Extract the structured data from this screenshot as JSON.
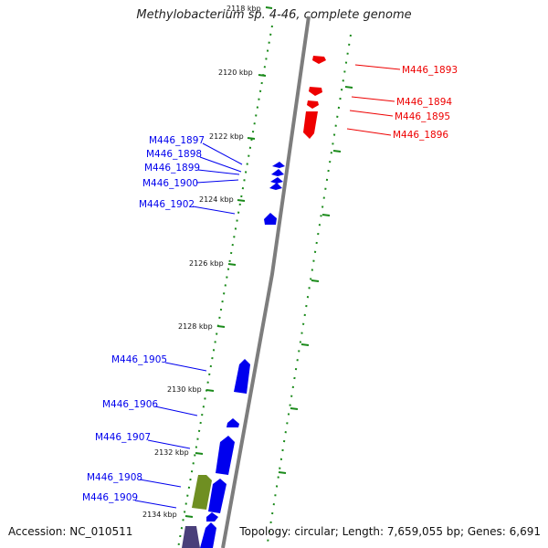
{
  "title": "Methylobacterium sp. 4-46, complete genome",
  "accession": "Accession: NC_010511",
  "topology": "Topology: circular; Length: 7,659,055 bp; Genes: 6,691",
  "colors": {
    "forward_gene": "#0000ee",
    "reverse_gene": "#ee0000",
    "other_feature": "#6f8f22",
    "other_feature_2": "#4a3f7a",
    "tick": "#1a8a1a",
    "backbone": "#7d7d7d"
  },
  "tick_labels": [
    "2118 kbp",
    "2120 kbp",
    "2122 kbp",
    "2124 kbp",
    "2126 kbp",
    "2128 kbp",
    "2130 kbp",
    "2132 kbp",
    "2134 kbp"
  ],
  "forward_labels": [
    "M446_1897",
    "M446_1898",
    "M446_1899",
    "M446_1900",
    "M446_1902",
    "M446_1905",
    "M446_1906",
    "M446_1907",
    "M446_1908",
    "M446_1909"
  ],
  "reverse_labels": [
    "M446_1893",
    "M446_1894",
    "M446_1895",
    "M446_1896"
  ]
}
